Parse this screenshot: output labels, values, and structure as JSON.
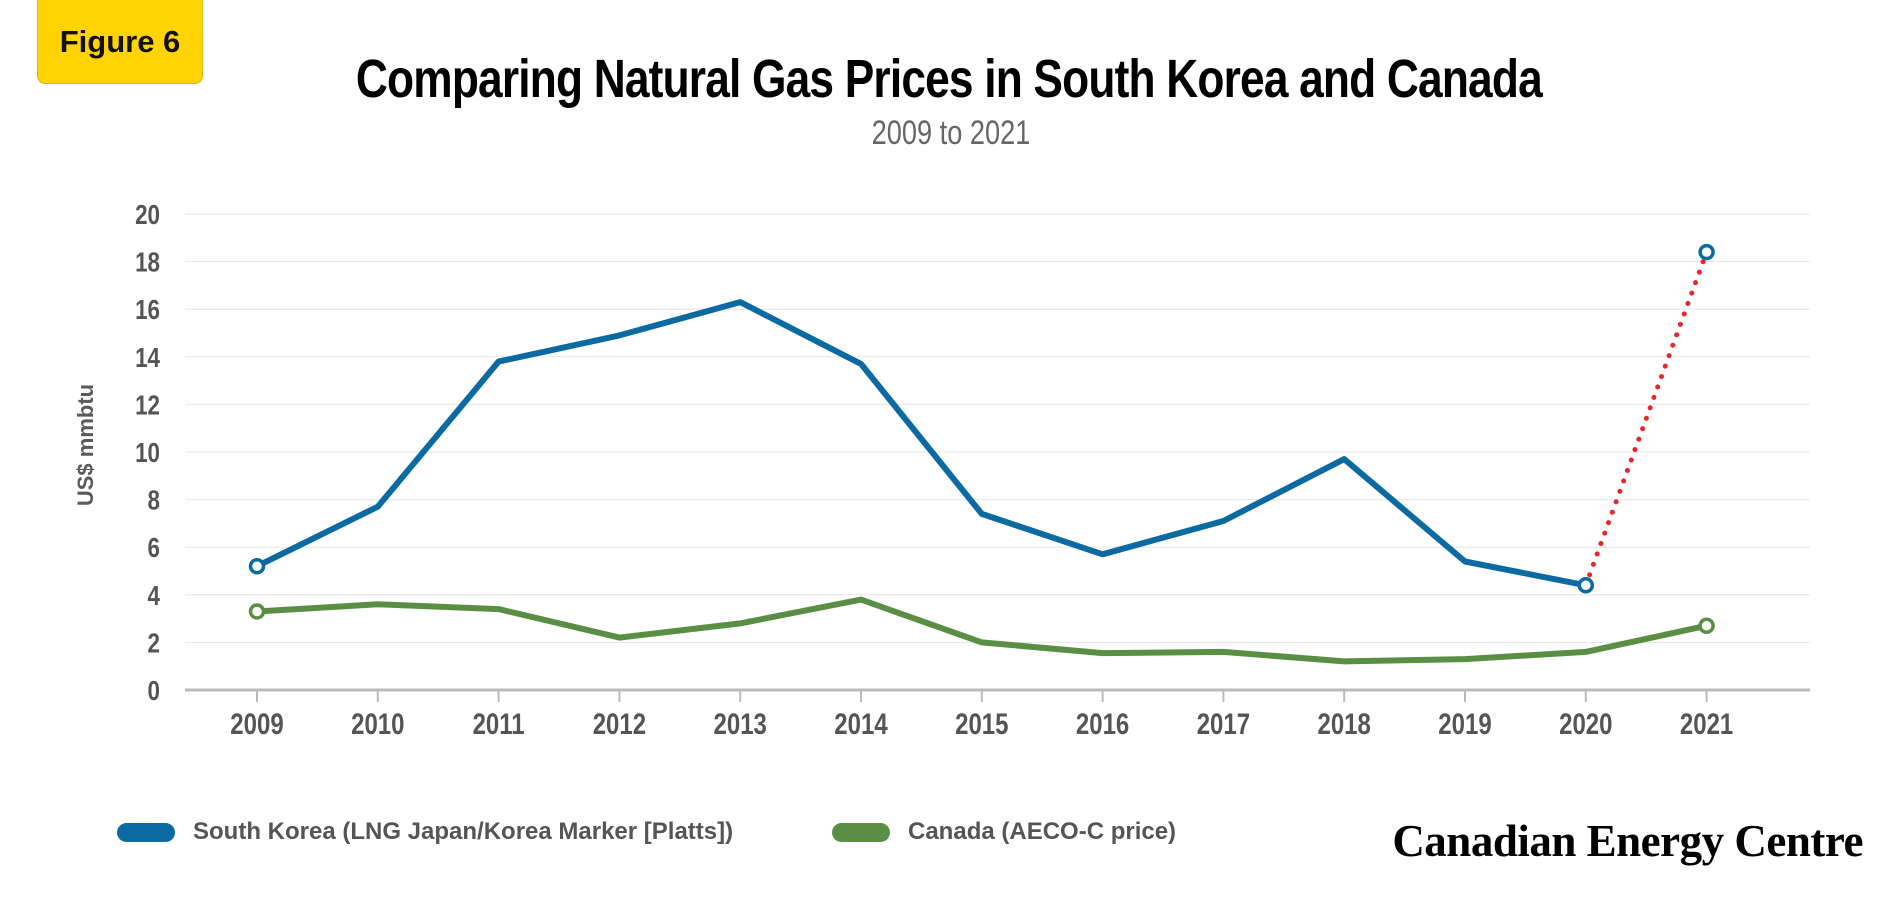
{
  "badge": {
    "label": "Figure 6",
    "color": "#ffd400"
  },
  "brand": "Canadian Energy Centre",
  "chart_data": {
    "type": "line",
    "title": "Comparing Natural Gas Prices in South Korea and Canada",
    "subtitle": "2009 to 2021",
    "ylabel": "US$ mmbtu",
    "xlabel": "",
    "ylim": [
      0,
      20
    ],
    "yticks": [
      "0",
      "2",
      "4",
      "6",
      "8",
      "10",
      "12",
      "14",
      "16",
      "18",
      "20"
    ],
    "categories": [
      "2009",
      "2010",
      "2011",
      "2012",
      "2013",
      "2014",
      "2015",
      "2016",
      "2017",
      "2018",
      "2019",
      "2020",
      "2021"
    ],
    "grid": true,
    "legend_position": "bottom-left",
    "series": [
      {
        "name": "South Korea (LNG Japan/Korea Marker [Platts])",
        "color": "#0a6aa1",
        "values": [
          5.2,
          7.7,
          13.8,
          14.9,
          16.3,
          13.7,
          7.4,
          5.7,
          7.1,
          9.7,
          5.4,
          4.4,
          18.4
        ],
        "dotted_last_segment_color": "#e8262b"
      },
      {
        "name": "Canada (AECO-C price)",
        "color": "#5a8e44",
        "values": [
          3.3,
          3.6,
          3.4,
          2.2,
          2.8,
          3.8,
          2.0,
          1.55,
          1.6,
          1.2,
          1.3,
          1.6,
          2.7
        ]
      }
    ]
  }
}
